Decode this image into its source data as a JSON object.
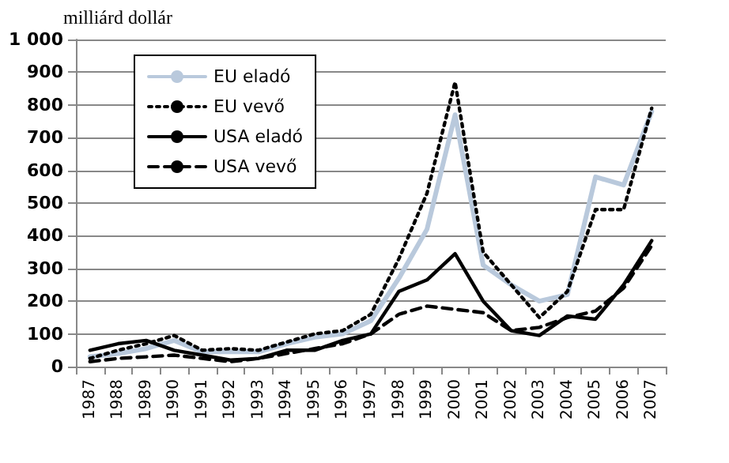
{
  "chart_data": {
    "type": "line",
    "ylabel": "milliárd dollár",
    "categories": [
      "1987",
      "1988",
      "1989",
      "1990",
      "1991",
      "1992",
      "1993",
      "1994",
      "1995",
      "1996",
      "1997",
      "1998",
      "1999",
      "2000",
      "2001",
      "2002",
      "2003",
      "2004",
      "2005",
      "2006",
      "2007"
    ],
    "series": [
      {
        "name": "EU eladó",
        "color": "#b9c9dc",
        "line_style": "solid",
        "values": [
          30,
          40,
          55,
          80,
          45,
          45,
          45,
          70,
          90,
          100,
          140,
          270,
          420,
          770,
          310,
          250,
          200,
          220,
          580,
          555,
          780
        ]
      },
      {
        "name": "EU vevő",
        "color": "#000000",
        "line_style": "dotted",
        "values": [
          25,
          50,
          70,
          95,
          50,
          55,
          50,
          75,
          100,
          110,
          160,
          330,
          530,
          870,
          350,
          250,
          150,
          230,
          480,
          480,
          790
        ]
      },
      {
        "name": "USA eladó",
        "color": "#000000",
        "line_style": "solid",
        "values": [
          50,
          70,
          80,
          50,
          35,
          20,
          25,
          50,
          50,
          80,
          100,
          230,
          265,
          345,
          200,
          110,
          95,
          155,
          145,
          250,
          385
        ]
      },
      {
        "name": "USA vevő",
        "color": "#000000",
        "line_style": "dashed",
        "values": [
          15,
          25,
          30,
          35,
          25,
          15,
          25,
          40,
          55,
          70,
          100,
          160,
          185,
          175,
          165,
          110,
          120,
          150,
          170,
          240,
          370
        ]
      }
    ],
    "ylim": [
      0,
      1000
    ],
    "yticks": [
      0,
      100,
      200,
      300,
      400,
      500,
      600,
      700,
      800,
      900,
      {
        "value": 1000,
        "label": "1 000"
      }
    ],
    "grid": "y",
    "legend": "top left",
    "marker": "none"
  }
}
